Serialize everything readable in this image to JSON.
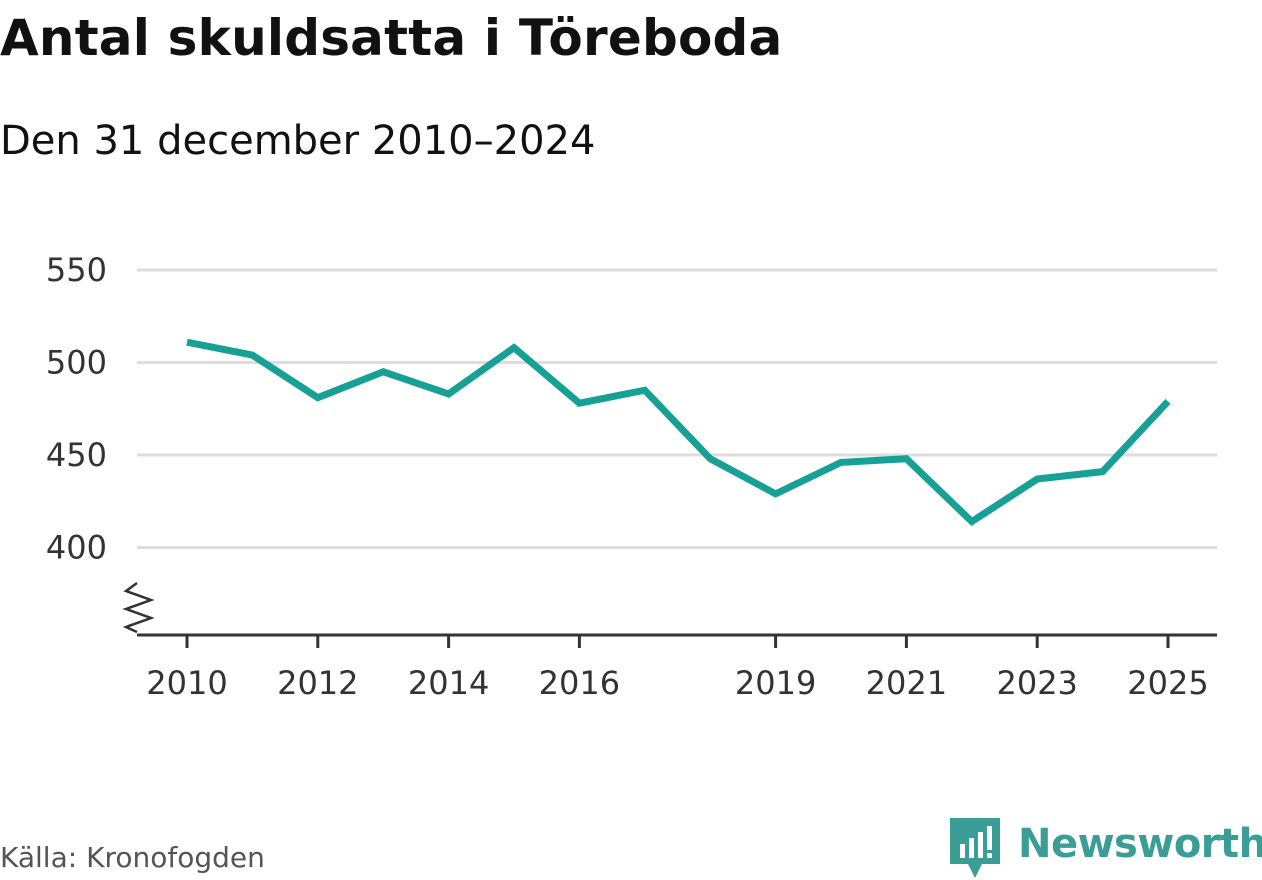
{
  "title": "Antal skuldsatta i Töreboda",
  "subtitle": "Den 31 december 2010–2024",
  "source": "Källa: Kronofogden",
  "brand": {
    "name": "Newsworthy",
    "logo_icon": "newsworthy-logo-icon",
    "color": "#3a9d96"
  },
  "colors": {
    "line": "#16a096",
    "grid": "#dddddd",
    "axis": "#333333"
  },
  "chart_data": {
    "type": "line",
    "title": "Antal skuldsatta i Töreboda",
    "subtitle": "Den 31 december 2010–2024",
    "xlabel": "",
    "ylabel": "",
    "x": [
      2010.0,
      2011.0,
      2012.0,
      2013.0,
      2014.0,
      2015.0,
      2016.0,
      2017.0,
      2018.0,
      2019.0,
      2020.0,
      2021.0,
      2022.0,
      2023.0,
      2024.0,
      2025.0
    ],
    "series": [
      {
        "name": "Antal skuldsatta",
        "values": [
          511,
          504,
          481,
          495,
          483,
          508,
          478,
          485,
          448,
          429,
          446,
          448,
          414,
          437,
          441,
          479
        ]
      }
    ],
    "xticks": [
      2010,
      2012,
      2014,
      2016,
      2019,
      2021,
      2023,
      2025
    ],
    "xtick_labels": [
      "2010",
      "2012",
      "2014",
      "2016",
      "2019",
      "2021",
      "2023",
      "2025"
    ],
    "yticks": [
      400,
      450,
      500,
      550
    ],
    "ytick_labels": [
      "400",
      "450",
      "500",
      "550"
    ],
    "ylim": [
      350,
      550
    ],
    "xlim": [
      2009.65,
      2025.75
    ],
    "y_axis_break": true,
    "grid": true
  }
}
